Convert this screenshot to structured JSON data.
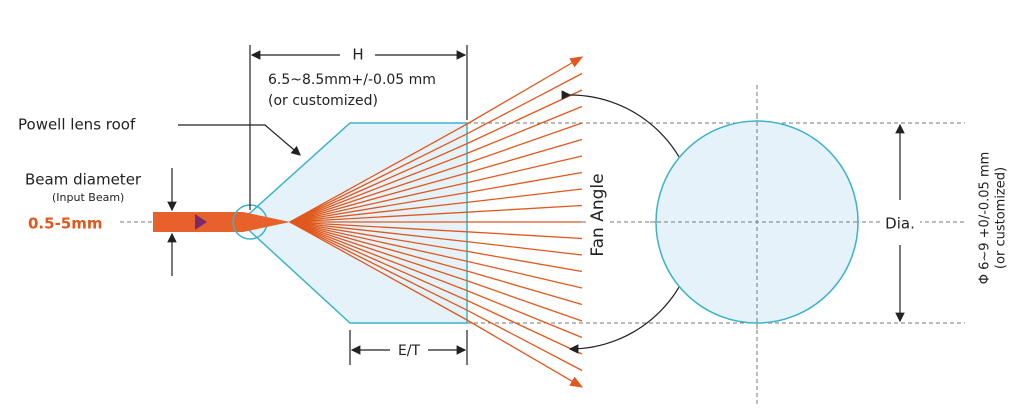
{
  "labels": {
    "h": "H",
    "h_size": "6.5~8.5mm+/-0.05 mm",
    "h_note": "(or customized)",
    "roof": "Powell lens roof",
    "beam_title": "Beam diameter",
    "beam_sub": "(Input Beam)",
    "beam_size": "0.5-5mm",
    "fan_angle": "Fan Angle",
    "et": "E/T",
    "dia": "Dia.",
    "dia_size": "Φ 6~9 +0/-0.05 mm",
    "dia_note": "(or customized)"
  }
}
